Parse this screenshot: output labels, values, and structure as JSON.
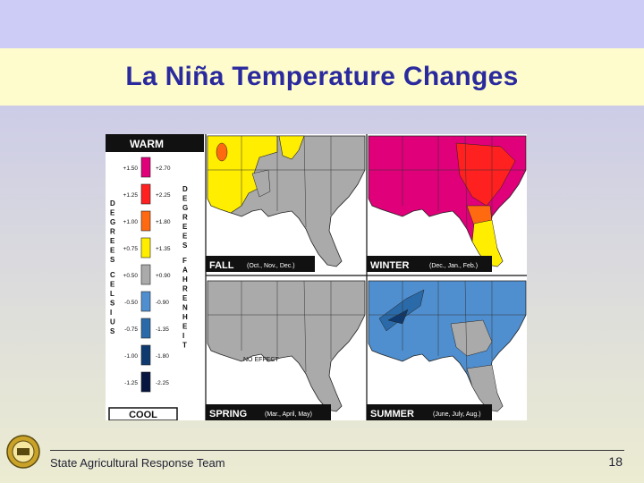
{
  "slide": {
    "title": "La Niña Temperature Changes",
    "footer": "State Agricultural Response Team",
    "page_number": "18"
  },
  "legend": {
    "warm_label": "WARM",
    "cool_label": "COOL",
    "celsius_label": "DEGREES CELSIUS",
    "fahrenheit_label": "DEGREES FAHRENHEIT",
    "rows": [
      {
        "c": "+1.50",
        "f": "+2.70",
        "color": "#e0007a"
      },
      {
        "c": "+1.25",
        "f": "+2.25",
        "color": "#ff2020"
      },
      {
        "c": "+1.00",
        "f": "+1.80",
        "color": "#ff6a10"
      },
      {
        "c": "+0.75",
        "f": "+1.35",
        "color": "#ffee00"
      },
      {
        "c": "+0.50",
        "f": "+0.90",
        "color": "#aaaaaa"
      },
      {
        "c": "-0.50",
        "f": "-0.90",
        "color": "#4f8fd0"
      },
      {
        "c": "-0.75",
        "f": "-1.35",
        "color": "#2b6aa8"
      },
      {
        "c": "-1.00",
        "f": "-1.80",
        "color": "#0e3a70"
      },
      {
        "c": "-1.25",
        "f": "-2.25",
        "color": "#061640"
      }
    ]
  },
  "maps": {
    "fall": {
      "season": "FALL",
      "months": "(Oct., Nov., Dec.)"
    },
    "winter": {
      "season": "WINTER",
      "months": "(Dec., Jan., Feb.)"
    },
    "spring": {
      "season": "SPRING",
      "months": "(Mar., April, May)",
      "note": "NO EFFECT"
    },
    "summer": {
      "season": "SUMMER",
      "months": "(June, July, Aug.)"
    }
  },
  "colors": {
    "land_neutral": "#aaaaaa",
    "title_text": "#2a2a9e"
  }
}
